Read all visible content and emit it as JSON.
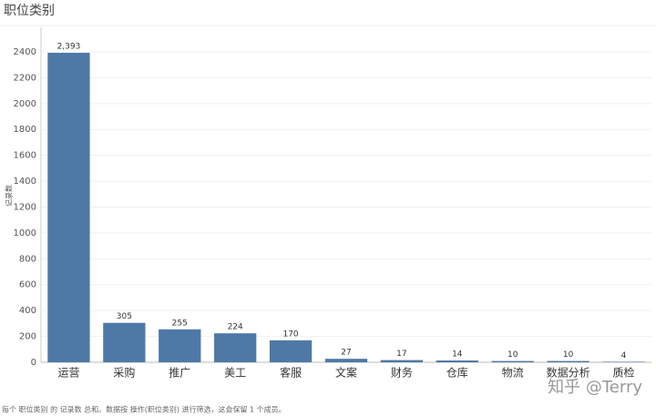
{
  "chart_data": {
    "type": "bar",
    "title": "职位类别",
    "y_label": "记录数",
    "categories": [
      "运营",
      "采购",
      "推广",
      "美工",
      "客服",
      "文案",
      "财务",
      "仓库",
      "物流",
      "数据分析",
      "质检"
    ],
    "values": [
      2393,
      305,
      255,
      224,
      170,
      27,
      17,
      14,
      10,
      10,
      4
    ],
    "value_labels": [
      "2,393",
      "305",
      "255",
      "224",
      "170",
      "27",
      "17",
      "14",
      "10",
      "10",
      "4"
    ],
    "color": "#4e79a7",
    "ylim": [
      0,
      2590
    ],
    "yticks": [
      0,
      200,
      400,
      600,
      800,
      1000,
      1200,
      1400,
      1600,
      1800,
      2000,
      2200,
      2400
    ],
    "grid": true,
    "footnote": "每个 职位类别 的 记录数 总和。数据按 操作(职位类别) 进行筛选，这会保留 1 个成员。",
    "watermark": "知乎 @Terry"
  }
}
